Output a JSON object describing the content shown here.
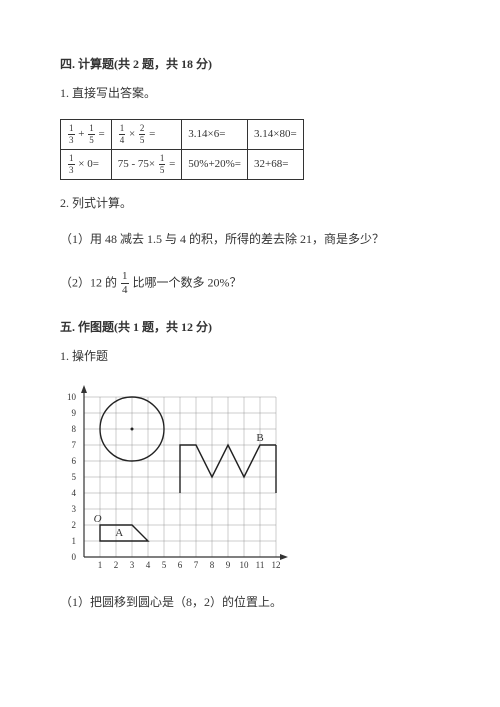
{
  "section4": {
    "title": "四. 计算题(共 2 题，共 18 分)",
    "q1": "1. 直接写出答案。",
    "table": {
      "r1c1_a": "1",
      "r1c1_b": "3",
      "r1c1_c": "1",
      "r1c1_d": "5",
      "r1c1_eq": " = ",
      "r1c2_a": "1",
      "r1c2_b": "4",
      "r1c2_c": "2",
      "r1c2_d": "5",
      "r1c2_eq": " = ",
      "r1c3": "3.14×6=",
      "r1c4": "3.14×80=",
      "r2c1_a": "1",
      "r2c1_b": "3",
      "r2c1_eq": " × 0= ",
      "r2c2_pre": "75 - 75× ",
      "r2c2_a": "1",
      "r2c2_b": "5",
      "r2c2_eq": "=",
      "r2c3": "50%+20%=",
      "r2c4": "32+68="
    },
    "q2": "2. 列式计算。",
    "q2_1": "（1）用 48 减去 1.5 与 4 的积，所得的差去除 21，商是多少？",
    "q2_2a": "（2）12 的 ",
    "q2_2_num": "1",
    "q2_2_den": "4",
    "q2_2b": " 比哪一个数多 20%？"
  },
  "section5": {
    "title": "五. 作图题(共 1 题，共 12 分)",
    "q1": "1. 操作题",
    "labels": {
      "O": "O",
      "A": "A",
      "B": "B"
    },
    "axis": {
      "y": [
        "10",
        "9",
        "8",
        "7",
        "6",
        "5",
        "4",
        "3",
        "2",
        "1",
        "0"
      ],
      "x": [
        "1",
        "2",
        "3",
        "4",
        "5",
        "6",
        "7",
        "8",
        "9",
        "10",
        "11",
        "12"
      ]
    },
    "sub1": "（1）把圆移到圆心是（8，2）的位置上。"
  },
  "grid": {
    "stroke": "#999999",
    "axis_stroke": "#333333",
    "circle_stroke": "#222222",
    "shape_stroke": "#222222",
    "text_color": "#333333"
  }
}
